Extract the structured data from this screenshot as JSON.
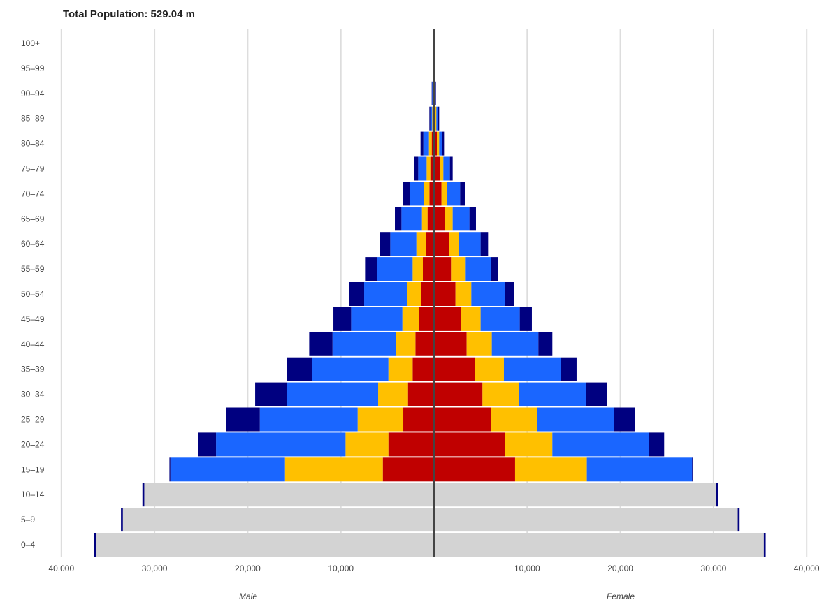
{
  "chart_data": {
    "type": "bar",
    "title": "Total Population: 529.04 m",
    "xlabel_left": "Male",
    "xlabel_right": "Female",
    "xlim": [
      -40000,
      40000
    ],
    "xticks": [
      -40000,
      -30000,
      -20000,
      -10000,
      10000,
      20000,
      30000,
      40000
    ],
    "xtick_labels": [
      "40,000",
      "30,000",
      "20,000",
      "10,000",
      "10,000",
      "20,000",
      "30,000",
      "40,000"
    ],
    "categories": [
      "0–4",
      "5–9",
      "10–14",
      "15–19",
      "20–24",
      "25–29",
      "30–34",
      "35–39",
      "40–44",
      "45–49",
      "50–54",
      "55–59",
      "60–64",
      "65–69",
      "70–74",
      "75–79",
      "80–84",
      "85–89",
      "90–94",
      "95–99",
      "100+"
    ],
    "colors": {
      "base": "#d3d3d3",
      "red": "#c00000",
      "yellow": "#ffc000",
      "blue": "#1a66ff",
      "navy": "#000080",
      "center_line": "#444444",
      "grid": "#dddddd"
    },
    "series": [
      {
        "color": "base",
        "male": [
          36300,
          33400,
          31100,
          0,
          0,
          0,
          0,
          0,
          0,
          0,
          0,
          0,
          0,
          0,
          0,
          0,
          0,
          0,
          0,
          0,
          0
        ],
        "female": [
          35400,
          32600,
          30300,
          0,
          0,
          0,
          0,
          0,
          0,
          0,
          0,
          0,
          0,
          0,
          0,
          0,
          0,
          0,
          0,
          0,
          0
        ]
      },
      {
        "color": "red",
        "male": [
          0,
          0,
          0,
          5500,
          4900,
          3300,
          2800,
          2300,
          2000,
          1600,
          1400,
          1200,
          900,
          700,
          500,
          400,
          250,
          100,
          50,
          0,
          0
        ],
        "female": [
          0,
          0,
          0,
          8700,
          7600,
          6100,
          5200,
          4400,
          3500,
          2900,
          2300,
          1900,
          1600,
          1200,
          800,
          600,
          300,
          150,
          50,
          0,
          0
        ]
      },
      {
        "color": "yellow",
        "male": [
          0,
          0,
          0,
          10500,
          4600,
          4900,
          3200,
          2600,
          2100,
          1800,
          1500,
          1100,
          1000,
          600,
          600,
          400,
          300,
          100,
          50,
          0,
          0
        ],
        "female": [
          0,
          0,
          0,
          7700,
          5100,
          5000,
          3900,
          3100,
          2700,
          2100,
          1700,
          1500,
          1100,
          800,
          600,
          400,
          250,
          100,
          50,
          0,
          0
        ]
      },
      {
        "color": "blue",
        "male": [
          0,
          0,
          0,
          12300,
          13900,
          10500,
          9800,
          8200,
          6800,
          5500,
          4600,
          3800,
          2800,
          2200,
          1500,
          900,
          600,
          200,
          100,
          0,
          0
        ],
        "female": [
          0,
          0,
          0,
          11300,
          10400,
          8200,
          7200,
          6100,
          5000,
          4200,
          3600,
          2700,
          2300,
          1800,
          1400,
          700,
          300,
          200,
          50,
          0,
          0
        ]
      },
      {
        "color": "navy",
        "male": [
          200,
          200,
          200,
          100,
          1900,
          3600,
          3400,
          2700,
          2500,
          1900,
          1600,
          1300,
          1100,
          700,
          700,
          400,
          300,
          100,
          50,
          0,
          0
        ],
        "female": [
          200,
          200,
          200,
          100,
          1600,
          2300,
          2300,
          1700,
          1500,
          1300,
          1000,
          800,
          800,
          700,
          500,
          300,
          300,
          100,
          50,
          0,
          0
        ]
      }
    ]
  }
}
